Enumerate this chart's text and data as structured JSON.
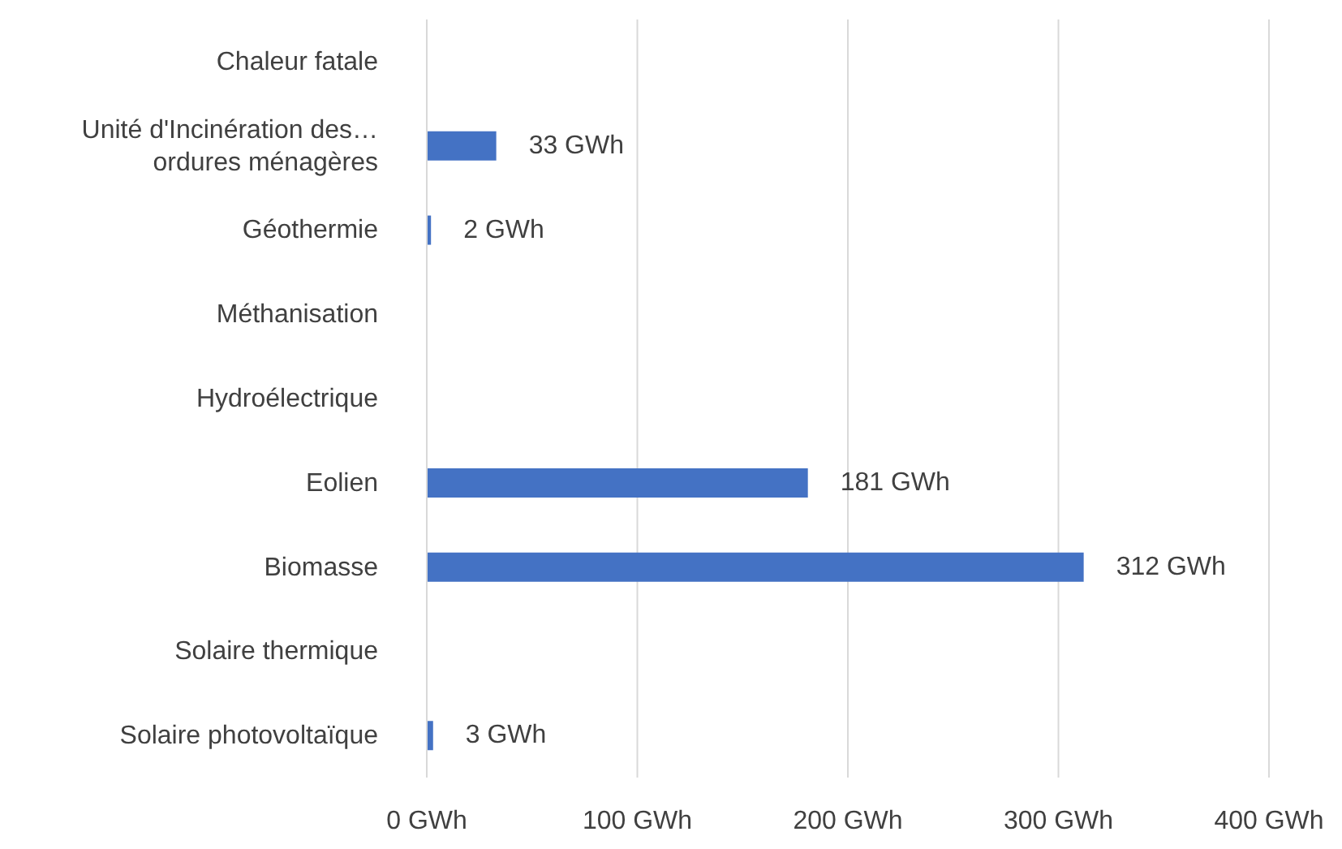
{
  "chart_data": {
    "type": "bar",
    "orientation": "horizontal",
    "categories": [
      "Chaleur fatale",
      "Unité d'Incinération des… ordures ménagères",
      "Géothermie",
      "Méthanisation",
      "Hydroélectrique",
      "Eolien",
      "Biomasse",
      "Solaire thermique",
      "Solaire photovoltaïque"
    ],
    "values": [
      null,
      33,
      2,
      null,
      null,
      181,
      312,
      null,
      3
    ],
    "value_labels": [
      null,
      "33 GWh",
      "2 GWh",
      null,
      null,
      "181 GWh",
      "312 GWh",
      null,
      "3 GWh"
    ],
    "color": "#4472c4",
    "xlim": [
      0,
      400
    ],
    "xticks": [
      {
        "value": 0,
        "label": "0 GWh"
      },
      {
        "value": 100,
        "label": "100 GWh"
      },
      {
        "value": 200,
        "label": "200 GWh"
      },
      {
        "value": 300,
        "label": "300 GWh"
      },
      {
        "value": 400,
        "label": "400 GWh"
      }
    ],
    "grid": "x",
    "legend": false
  }
}
